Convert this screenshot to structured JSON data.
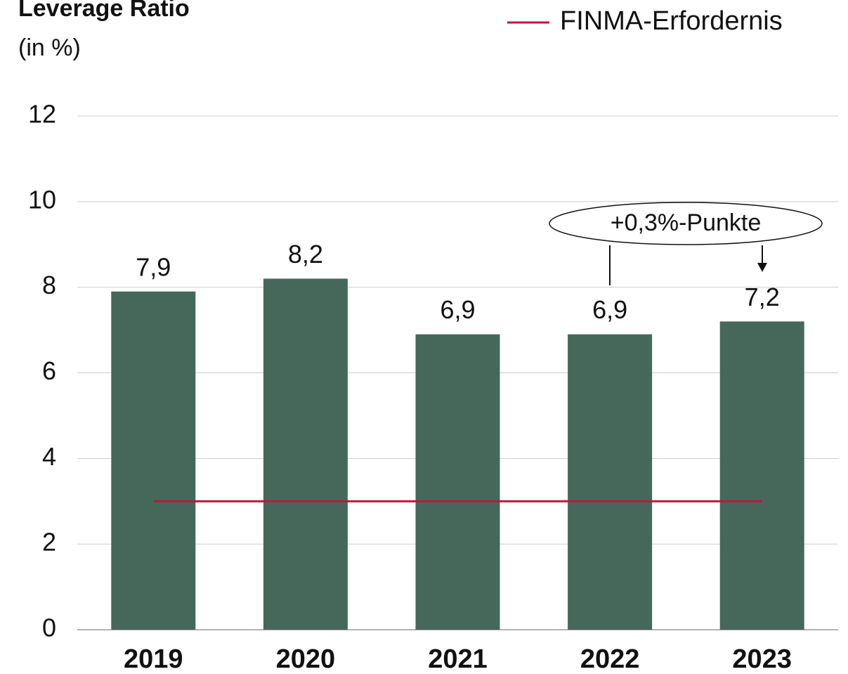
{
  "chart_data": {
    "type": "bar",
    "title": "Leverage Ratio",
    "subtitle": "(in %)",
    "categories": [
      "2019",
      "2020",
      "2021",
      "2022",
      "2023"
    ],
    "values": [
      7.9,
      8.2,
      6.9,
      6.9,
      7.2
    ],
    "value_labels": [
      "7,9",
      "8,2",
      "6,9",
      "6,9",
      "7,2"
    ],
    "color": "#46685a",
    "series": [
      {
        "name": "FINMA-Erfordernis",
        "color": "#c0143c",
        "values": [
          3,
          3,
          3,
          3,
          3
        ]
      }
    ],
    "annotation": "+0,3%-Punkte",
    "ylim": [
      0,
      12
    ],
    "yticks": [
      0,
      2,
      4,
      6,
      8,
      10,
      12
    ],
    "grid": true,
    "legend": "top-right"
  }
}
